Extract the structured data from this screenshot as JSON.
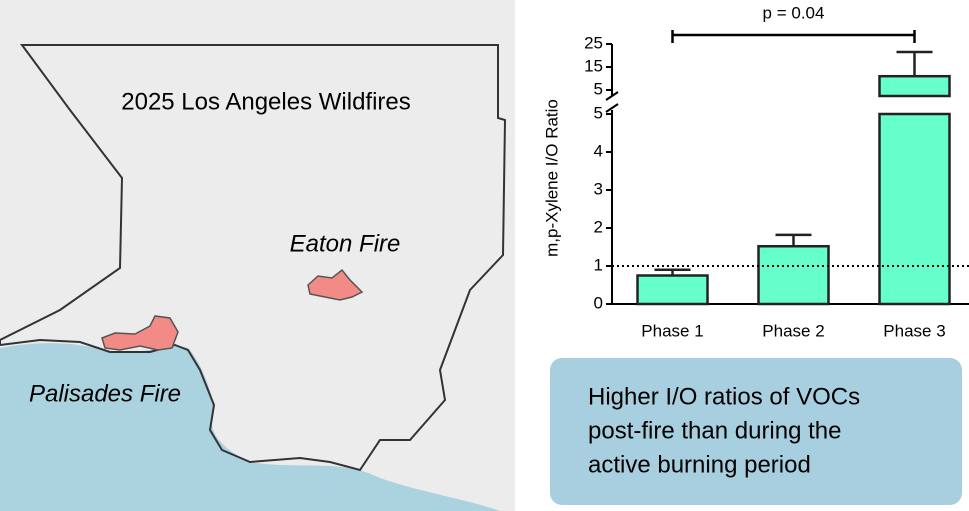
{
  "map": {
    "title": "2025 Los Angeles Wildfires",
    "labels": [
      "Eaton Fire",
      "Palisades Fire"
    ]
  },
  "chart_data": {
    "type": "bar",
    "y_label": "m,p-Xylene I/O Ratio",
    "categories": [
      "Phase 1",
      "Phase 2",
      "Phase 3"
    ],
    "values": [
      0.75,
      1.52,
      11
    ],
    "errors": [
      0.15,
      0.3,
      10.5
    ],
    "color": "#66ffcc",
    "segments": [
      {
        "ylim": [
          0,
          5
        ],
        "yticks": [
          0,
          1,
          2,
          3,
          4,
          5
        ]
      },
      {
        "ylim": [
          5,
          25
        ],
        "yticks": [
          5,
          15,
          25
        ]
      }
    ],
    "reference_line": 1,
    "annotation": {
      "text": "p = 0.04",
      "from": 0,
      "to": 2
    }
  },
  "callout": {
    "lines": [
      "Higher I/O ratios of VOCs",
      "post-fire than during the",
      "active burning period"
    ]
  }
}
